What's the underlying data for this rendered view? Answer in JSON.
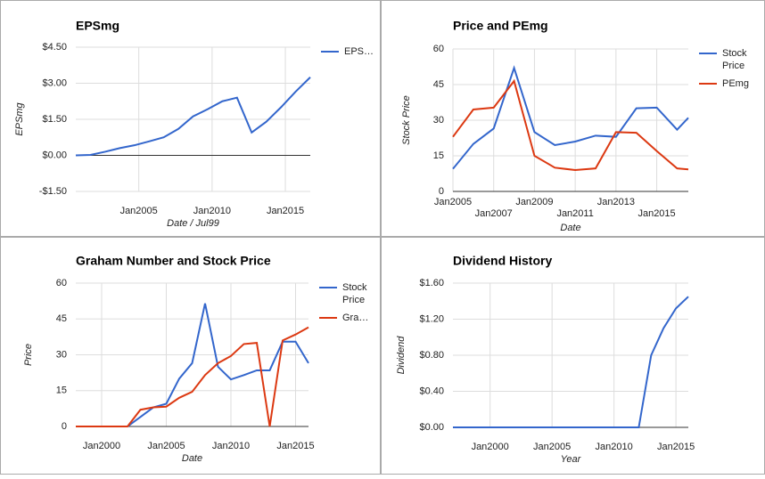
{
  "chart_data": [
    {
      "type": "line",
      "title": "EPSmg",
      "x_label": "Date / Jul99",
      "y_label": "EPSmg",
      "x": [
        2000.7,
        2001.7,
        2002.7,
        2003.7,
        2004.7,
        2005.7,
        2006.7,
        2007.7,
        2008.7,
        2009.7,
        2010.7,
        2011.7,
        2012.7,
        2013.7,
        2014.7,
        2015.7,
        2016.7
      ],
      "series": [
        {
          "name": "EPS…",
          "color": "#3366cc",
          "values": [
            0,
            0.02,
            0.15,
            0.3,
            0.42,
            0.58,
            0.75,
            1.1,
            1.62,
            1.92,
            2.25,
            2.4,
            0.95,
            1.4,
            2.0,
            2.65,
            3.25
          ]
        }
      ],
      "xlim": [
        2000.7,
        2016.7
      ],
      "xticks": [
        {
          "value": 2005,
          "label": "Jan2005"
        },
        {
          "value": 2010,
          "label": "Jan2010"
        },
        {
          "value": 2015,
          "label": "Jan2015"
        }
      ],
      "ylim": [
        -1.5,
        4.5
      ],
      "yticks": [
        {
          "value": -1.5,
          "label": "-$1.50"
        },
        {
          "value": 0,
          "label": "$0.00"
        },
        {
          "value": 1.5,
          "label": "$1.50"
        },
        {
          "value": 3,
          "label": "$3.00"
        },
        {
          "value": 4.5,
          "label": "$4.50"
        }
      ],
      "grid": true,
      "legend": "right"
    },
    {
      "type": "line",
      "title": "Price and PEmg",
      "x_label": "Date",
      "y_label": "Stock Price",
      "x": [
        2005,
        2006,
        2007,
        2008,
        2009,
        2010,
        2011,
        2012,
        2013,
        2014,
        2015,
        2016,
        2016.55
      ],
      "series": [
        {
          "name": "Stock Price",
          "color": "#3366cc",
          "values": [
            9.5,
            20,
            26.5,
            52,
            25,
            19.5,
            21,
            23.5,
            23,
            35,
            35.3,
            26,
            31
          ]
        },
        {
          "name": "PEmg",
          "color": "#dc3912",
          "values": [
            23,
            34.5,
            35.3,
            46.5,
            15,
            10,
            9,
            9.7,
            25,
            24.7,
            17,
            9.7,
            9.3
          ]
        }
      ],
      "xlim": [
        2005,
        2016.55
      ],
      "xticks": [
        {
          "value": 2005,
          "label": "Jan2005"
        },
        {
          "value": 2007,
          "label": "Jan2007"
        },
        {
          "value": 2009,
          "label": "Jan2009"
        },
        {
          "value": 2011,
          "label": "Jan2011"
        },
        {
          "value": 2013,
          "label": "Jan2013"
        },
        {
          "value": 2015,
          "label": "Jan2015"
        }
      ],
      "ylim": [
        0,
        60
      ],
      "yticks": [
        0,
        15,
        30,
        45,
        60
      ],
      "grid": true,
      "legend": "right"
    },
    {
      "type": "line",
      "title": "Graham Number and Stock Price",
      "x_label": "Date",
      "y_label": "Price",
      "x": [
        1998,
        1999,
        2000,
        2001,
        2002,
        2003,
        2004,
        2005,
        2006,
        2007,
        2008,
        2009,
        2010,
        2011,
        2012,
        2013,
        2014,
        2015,
        2016
      ],
      "series": [
        {
          "name": "Stock Price",
          "color": "#3366cc",
          "values": [
            0,
            0,
            0,
            0,
            0,
            4,
            8,
            9.5,
            20,
            26.5,
            51.5,
            25,
            19.7,
            21.5,
            23.5,
            23.5,
            35.5,
            35.5,
            26.5
          ]
        },
        {
          "name": "Gra…",
          "color": "#dc3912",
          "values": [
            0,
            0,
            0,
            0,
            0,
            7,
            8,
            8.3,
            12,
            14.5,
            21.5,
            26.5,
            29.5,
            34.5,
            35,
            0,
            36,
            38.5,
            41.5
          ]
        }
      ],
      "xlim": [
        1998,
        2016
      ],
      "xticks": [
        {
          "value": 2000,
          "label": "Jan2000"
        },
        {
          "value": 2005,
          "label": "Jan2005"
        },
        {
          "value": 2010,
          "label": "Jan2010"
        },
        {
          "value": 2015,
          "label": "Jan2015"
        }
      ],
      "ylim": [
        0,
        60
      ],
      "yticks": [
        0,
        15,
        30,
        45,
        60
      ],
      "grid": true,
      "legend": "right"
    },
    {
      "type": "line",
      "title": "Dividend History",
      "x_label": "Year",
      "y_label": "Dividend",
      "x": [
        1997,
        1998,
        1999,
        2000,
        2001,
        2002,
        2003,
        2004,
        2005,
        2006,
        2007,
        2008,
        2009,
        2010,
        2011,
        2012,
        2013,
        2014,
        2015,
        2016
      ],
      "series": [
        {
          "name": "Dividend",
          "color": "#3366cc",
          "values": [
            0,
            0,
            0,
            0,
            0,
            0,
            0,
            0,
            0,
            0,
            0,
            0,
            0,
            0,
            0,
            0,
            0.8,
            1.1,
            1.32,
            1.45
          ]
        }
      ],
      "xlim": [
        1997,
        2016
      ],
      "xticks": [
        {
          "value": 2000,
          "label": "Jan2000"
        },
        {
          "value": 2005,
          "label": "Jan2005"
        },
        {
          "value": 2010,
          "label": "Jan2010"
        },
        {
          "value": 2015,
          "label": "Jan2015"
        }
      ],
      "ylim": [
        0,
        1.6
      ],
      "yticks": [
        {
          "value": 0,
          "label": "$0.00"
        },
        {
          "value": 0.4,
          "label": "$0.40"
        },
        {
          "value": 0.8,
          "label": "$0.80"
        },
        {
          "value": 1.2,
          "label": "$1.20"
        },
        {
          "value": 1.6,
          "label": "$1.60"
        }
      ],
      "grid": true,
      "legend": "none"
    }
  ]
}
